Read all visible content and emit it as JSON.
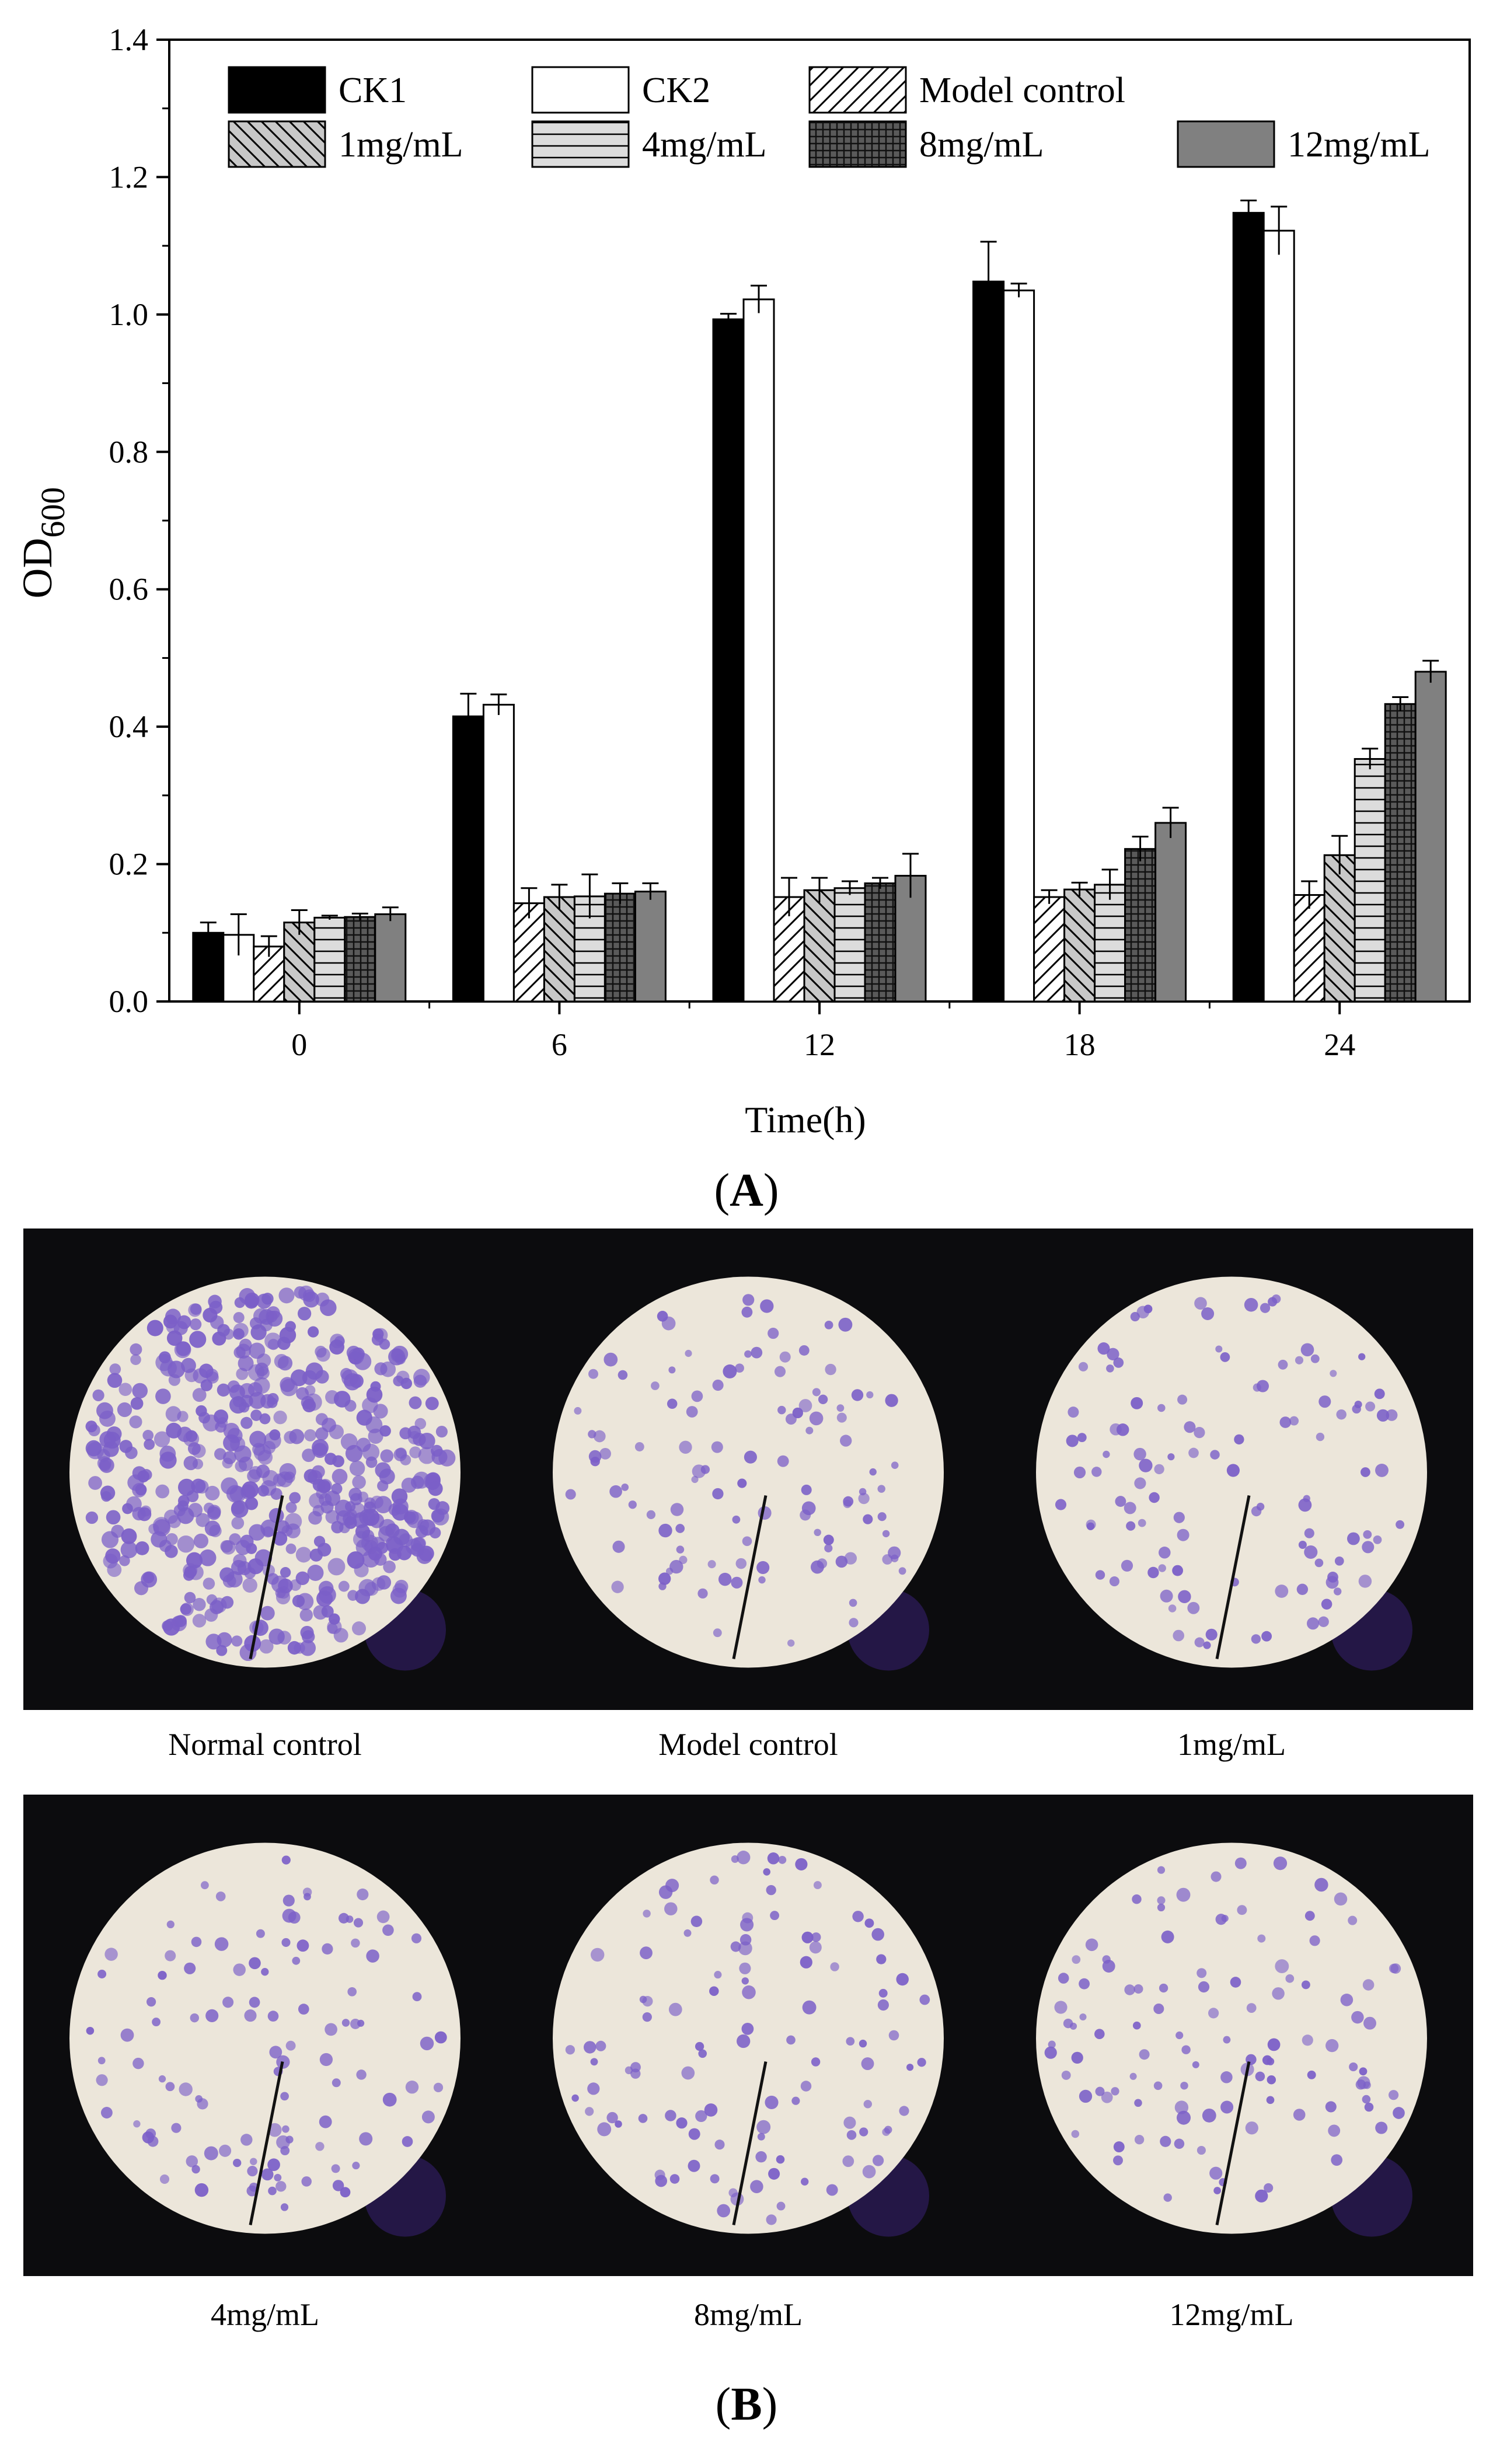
{
  "panel_a": {
    "label_open": "(",
    "label_letter": "A",
    "label_close": ")"
  },
  "chart_data": {
    "type": "bar",
    "xlabel": "Time(h)",
    "ylabel_main": "OD",
    "ylabel_sub": "600",
    "ylim": [
      0,
      1.4
    ],
    "yticks": [
      "0.0",
      "0.2",
      "0.4",
      "0.6",
      "0.8",
      "1.0",
      "1.2",
      "1.4"
    ],
    "categories": [
      "0",
      "6",
      "12",
      "18",
      "24"
    ],
    "legend_position": "top",
    "series": [
      {
        "name": "CK1",
        "fill": "#000000",
        "pattern": "solid",
        "values": [
          0.1,
          0.415,
          0.993,
          1.048,
          1.148
        ],
        "errors": [
          0.015,
          0.033,
          0.008,
          0.058,
          0.018
        ]
      },
      {
        "name": "CK2",
        "fill": "#ffffff",
        "pattern": "solid",
        "values": [
          0.097,
          0.432,
          1.022,
          1.035,
          1.122
        ],
        "errors": [
          0.03,
          0.015,
          0.02,
          0.01,
          0.035
        ]
      },
      {
        "name": "Model control",
        "fill": "#ffffff",
        "pattern": "diag-forward",
        "values": [
          0.08,
          0.143,
          0.152,
          0.152,
          0.155
        ],
        "errors": [
          0.015,
          0.022,
          0.028,
          0.01,
          0.02
        ]
      },
      {
        "name": "1mg/mL",
        "fill": "#c8c8c8",
        "pattern": "diag-back",
        "values": [
          0.115,
          0.152,
          0.162,
          0.163,
          0.213
        ],
        "errors": [
          0.018,
          0.018,
          0.018,
          0.01,
          0.028
        ]
      },
      {
        "name": "4mg/mL",
        "fill": "#dcdcdc",
        "pattern": "horizontal",
        "values": [
          0.122,
          0.153,
          0.165,
          0.17,
          0.353
        ],
        "errors": [
          0.003,
          0.032,
          0.01,
          0.022,
          0.015
        ]
      },
      {
        "name": "8mg/mL",
        "fill": "#555555",
        "pattern": "grid",
        "values": [
          0.123,
          0.157,
          0.172,
          0.222,
          0.433
        ],
        "errors": [
          0.005,
          0.015,
          0.008,
          0.018,
          0.01
        ]
      },
      {
        "name": "12mg/mL",
        "fill": "#808080",
        "pattern": "solid",
        "values": [
          0.127,
          0.16,
          0.183,
          0.26,
          0.48
        ],
        "errors": [
          0.01,
          0.012,
          0.032,
          0.022,
          0.016
        ]
      }
    ]
  },
  "panel_b": {
    "label_open": "(",
    "label_letter": "B",
    "label_close": ")",
    "images": [
      {
        "caption": "Normal control",
        "density": "dense"
      },
      {
        "caption": "Model control",
        "density": "sparse"
      },
      {
        "caption": "1mg/mL",
        "density": "sparse"
      },
      {
        "caption": "4mg/mL",
        "density": "sparse"
      },
      {
        "caption": "8mg/mL",
        "density": "sparse"
      },
      {
        "caption": "12mg/mL",
        "density": "sparse"
      }
    ],
    "stain_color": "#7b5fc8",
    "field_color": "#ece6da"
  }
}
